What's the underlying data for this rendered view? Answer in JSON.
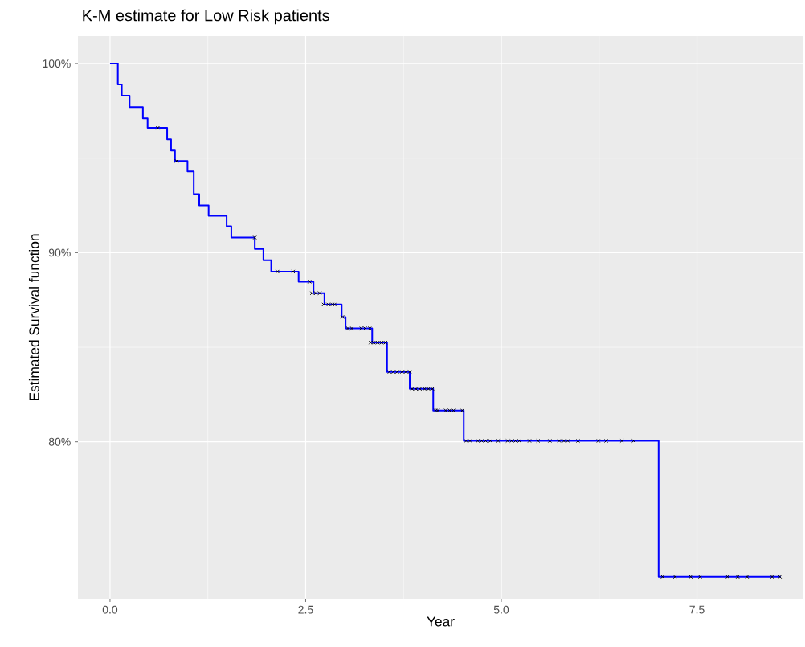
{
  "chart_data": {
    "type": "step",
    "title": "K-M estimate for Low Risk patients",
    "xlabel": "Year",
    "ylabel": "Estimated Survival function",
    "xlim": [
      -0.41,
      8.86
    ],
    "ylim": [
      71.7,
      101.45
    ],
    "xticks": [
      {
        "value": 0,
        "label": "0.0"
      },
      {
        "value": 2.5,
        "label": "2.5"
      },
      {
        "value": 5,
        "label": "5.0"
      },
      {
        "value": 7.5,
        "label": "7.5"
      }
    ],
    "yticks": [
      {
        "value": 80,
        "label": "80%"
      },
      {
        "value": 90,
        "label": "90%"
      },
      {
        "value": 100,
        "label": "100%"
      }
    ],
    "grid": true,
    "series": [
      {
        "color": "#0000ff",
        "line_style": "solid",
        "marker": "none",
        "x": [
          0,
          0.1,
          0.15,
          0.25,
          0.42,
          0.48,
          0.73,
          0.78,
          0.83,
          0.99,
          1.07,
          1.14,
          1.26,
          1.49,
          1.55,
          1.85,
          1.96,
          2.06,
          2.41,
          2.6,
          2.74,
          2.96,
          3.01,
          3.35,
          3.54,
          3.83,
          4.13,
          4.52,
          7.01,
          8.57
        ],
        "values": [
          100,
          98.9,
          98.3,
          97.7,
          97.1,
          96.6,
          96.0,
          95.4,
          94.85,
          94.3,
          93.1,
          92.5,
          91.95,
          91.4,
          90.8,
          90.2,
          89.6,
          89.0,
          88.47,
          87.86,
          87.26,
          86.6,
          86.0,
          85.25,
          83.7,
          82.8,
          81.66,
          80.05,
          72.86,
          72.86
        ]
      },
      {
        "type": "scatter",
        "color": "#000000",
        "marker": "cross",
        "x": [
          0.61,
          0.85,
          1.85,
          2.14,
          2.34,
          2.55,
          2.58,
          2.63,
          2.68,
          2.73,
          2.79,
          2.84,
          2.87,
          2.97,
          3.04,
          3.09,
          3.21,
          3.26,
          3.32,
          3.33,
          3.37,
          3.42,
          3.47,
          3.52,
          3.57,
          3.62,
          3.67,
          3.73,
          3.78,
          3.83,
          3.86,
          3.91,
          3.96,
          4.02,
          4.07,
          4.12,
          4.16,
          4.19,
          4.29,
          4.34,
          4.39,
          4.5,
          4.55,
          4.6,
          4.7,
          4.75,
          4.8,
          4.86,
          4.96,
          5.08,
          5.13,
          5.18,
          5.23,
          5.36,
          5.47,
          5.62,
          5.74,
          5.8,
          5.85,
          5.98,
          6.24,
          6.34,
          6.54,
          6.69,
          7.06,
          7.22,
          7.42,
          7.54,
          7.89,
          8.02,
          8.14,
          8.46,
          8.56
        ],
        "values": [
          96.6,
          94.85,
          90.8,
          89.0,
          89.0,
          88.47,
          87.86,
          87.86,
          87.86,
          87.26,
          87.26,
          87.26,
          87.26,
          86.6,
          86.0,
          86.0,
          86.0,
          86.0,
          86.0,
          85.25,
          85.25,
          85.25,
          85.25,
          85.25,
          83.7,
          83.7,
          83.7,
          83.7,
          83.7,
          83.7,
          82.8,
          82.8,
          82.8,
          82.8,
          82.8,
          82.8,
          81.66,
          81.66,
          81.66,
          81.66,
          81.66,
          81.66,
          80.05,
          80.05,
          80.05,
          80.05,
          80.05,
          80.05,
          80.05,
          80.05,
          80.05,
          80.05,
          80.05,
          80.05,
          80.05,
          80.05,
          80.05,
          80.05,
          80.05,
          80.05,
          80.05,
          80.05,
          80.05,
          80.05,
          72.86,
          72.86,
          72.86,
          72.86,
          72.86,
          72.86,
          72.86,
          72.86,
          72.86
        ]
      }
    ]
  }
}
